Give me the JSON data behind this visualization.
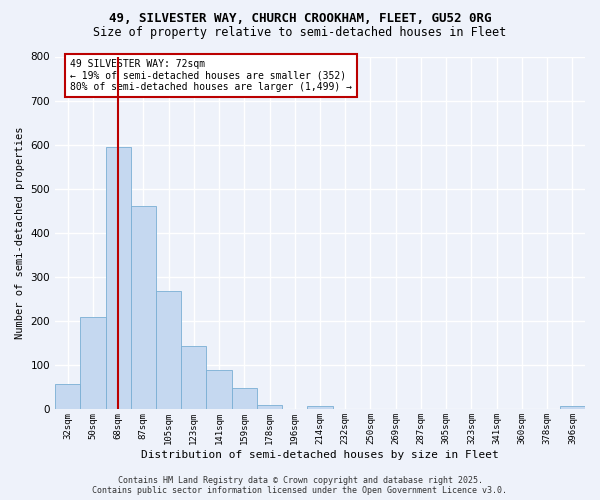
{
  "title_line1": "49, SILVESTER WAY, CHURCH CROOKHAM, FLEET, GU52 0RG",
  "title_line2": "Size of property relative to semi-detached houses in Fleet",
  "xlabel": "Distribution of semi-detached houses by size in Fleet",
  "ylabel": "Number of semi-detached properties",
  "categories": [
    "32sqm",
    "50sqm",
    "68sqm",
    "87sqm",
    "105sqm",
    "123sqm",
    "141sqm",
    "159sqm",
    "178sqm",
    "196sqm",
    "214sqm",
    "232sqm",
    "250sqm",
    "269sqm",
    "287sqm",
    "305sqm",
    "323sqm",
    "341sqm",
    "360sqm",
    "378sqm",
    "396sqm"
  ],
  "bar_values": [
    58,
    210,
    595,
    462,
    268,
    143,
    90,
    48,
    10,
    0,
    8,
    0,
    0,
    0,
    0,
    0,
    0,
    0,
    0,
    0,
    8
  ],
  "bar_color": "#c5d8f0",
  "bar_edge_color": "#7aafd4",
  "background_color": "#eef2fa",
  "grid_color": "#ffffff",
  "vline_x_index": 2,
  "vline_color": "#bb0000",
  "annotation_title": "49 SILVESTER WAY: 72sqm",
  "annotation_line1": "← 19% of semi-detached houses are smaller (352)",
  "annotation_line2": "80% of semi-detached houses are larger (1,499) →",
  "annotation_box_edgecolor": "#bb0000",
  "ylim": [
    0,
    800
  ],
  "yticks": [
    0,
    100,
    200,
    300,
    400,
    500,
    600,
    700,
    800
  ],
  "footnote_line1": "Contains HM Land Registry data © Crown copyright and database right 2025.",
  "footnote_line2": "Contains public sector information licensed under the Open Government Licence v3.0."
}
